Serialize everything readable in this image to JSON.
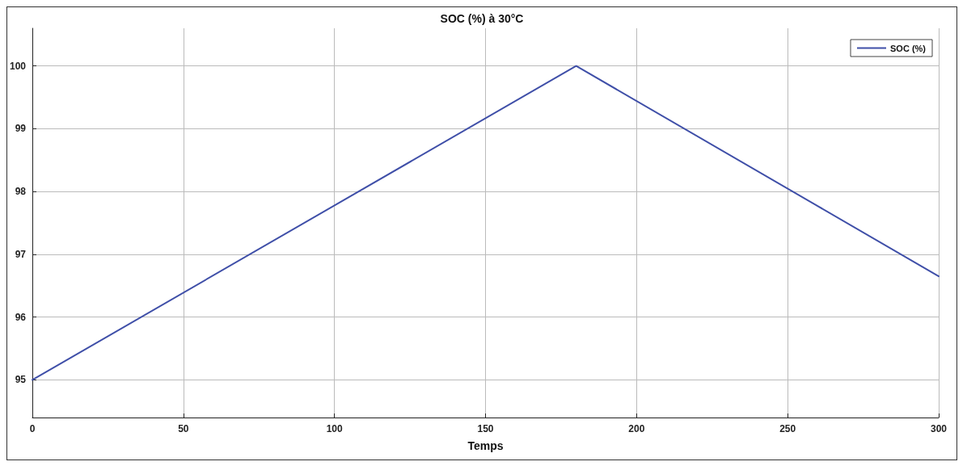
{
  "chart_data": {
    "type": "line",
    "title": "SOC (%) à 30°C",
    "xlabel": "Temps",
    "x": [
      0,
      180,
      300
    ],
    "series": [
      {
        "name": "SOC (%)",
        "color": "#3f4fa8",
        "values": [
          95,
          100,
          96.65
        ]
      }
    ],
    "xlim": [
      0,
      300
    ],
    "xticks": [
      0,
      50,
      100,
      150,
      200,
      250,
      300
    ],
    "ylim": [
      94.4,
      100.6
    ],
    "yticks": [
      95,
      96,
      97,
      98,
      99,
      100
    ],
    "grid": true,
    "legend": "top right",
    "marker": "none",
    "line_style": "solid"
  }
}
